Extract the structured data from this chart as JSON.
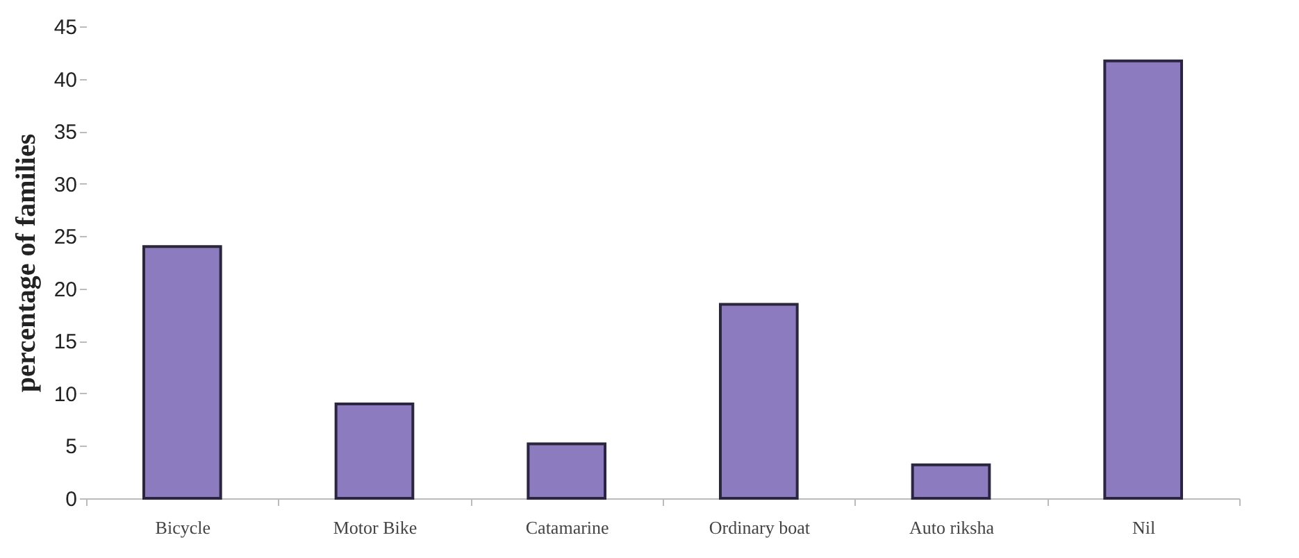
{
  "chart_data": {
    "type": "bar",
    "ylabel": "percentage of families",
    "categories": [
      "Bicycle",
      "Motor Bike",
      "Catamarine",
      "Ordinary boat",
      "Auto riksha",
      "Nil"
    ],
    "values": [
      24,
      9,
      5.2,
      18.5,
      3.2,
      41.7
    ],
    "color": "#8c7bbf",
    "ylim": [
      0,
      45
    ],
    "yticks": [
      0,
      5,
      10,
      15,
      20,
      25,
      30,
      35,
      40,
      45
    ],
    "grid": false
  }
}
